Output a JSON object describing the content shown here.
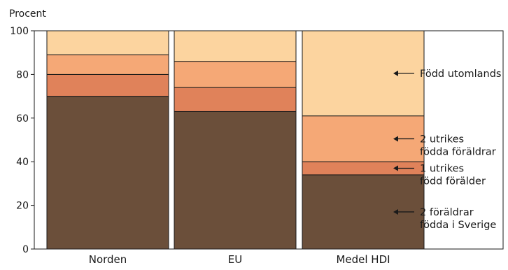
{
  "chart_data": {
    "type": "bar",
    "stacked": true,
    "ylabel": "Procent",
    "ylim": [
      0,
      100
    ],
    "yticks": [
      0,
      20,
      40,
      60,
      80,
      100
    ],
    "grid": false,
    "categories": [
      "Norden",
      "EU",
      "Medel HDI"
    ],
    "series": [
      {
        "name": "2 föräldrar födda i Sverige",
        "label_lines": [
          "2 föräldrar",
          "födda i Sverige"
        ],
        "color": "#6b4f3a",
        "values": [
          70,
          63,
          34
        ]
      },
      {
        "name": "1 utrikes född förälder",
        "label_lines": [
          "1 utrikes",
          "född förälder"
        ],
        "color": "#e0825a",
        "values": [
          10,
          11,
          6
        ]
      },
      {
        "name": "2 utrikes födda föräldrar",
        "label_lines": [
          "2 utrikes",
          "födda föräldrar"
        ],
        "color": "#f5a876",
        "values": [
          9,
          12,
          21
        ]
      },
      {
        "name": "Född utomlands",
        "label_lines": [
          "Född utomlands"
        ],
        "color": "#fcd49f",
        "values": [
          11,
          14,
          39
        ]
      }
    ]
  }
}
